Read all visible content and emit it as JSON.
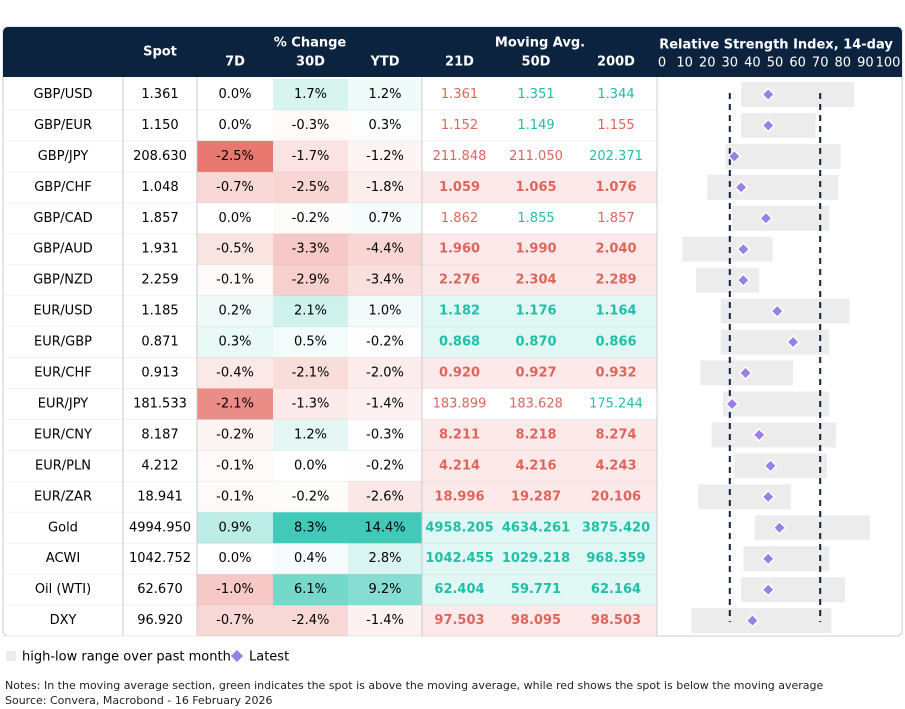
{
  "header": {
    "spot": "Spot",
    "change": "% Change",
    "change_cols": [
      "7D",
      "30D",
      "YTD"
    ],
    "ma": "Moving Avg.",
    "ma_cols": [
      "21D",
      "50D",
      "200D"
    ],
    "rsi": "Relative Strength Index, 14-day"
  },
  "table": {
    "rows": [
      {
        "name": "GBP/USD",
        "spot": "1.361",
        "change": [
          "0.0%",
          "1.7%",
          "1.2%"
        ],
        "ma": [
          "1.361",
          "1.351",
          "1.344"
        ],
        "rsi": {
          "low": 35,
          "high": 85,
          "latest": 47
        }
      },
      {
        "name": "GBP/EUR",
        "spot": "1.150",
        "change": [
          "0.0%",
          "-0.3%",
          "0.3%"
        ],
        "ma": [
          "1.152",
          "1.149",
          "1.155"
        ],
        "rsi": {
          "low": 35,
          "high": 68,
          "latest": 47
        }
      },
      {
        "name": "GBP/JPY",
        "spot": "208.630",
        "change": [
          "-2.5%",
          "-1.7%",
          "-1.2%"
        ],
        "ma": [
          "211.848",
          "211.050",
          "202.371"
        ],
        "rsi": {
          "low": 28,
          "high": 79,
          "latest": 32
        }
      },
      {
        "name": "GBP/CHF",
        "spot": "1.048",
        "change": [
          "-0.7%",
          "-2.5%",
          "-1.8%"
        ],
        "ma": [
          "1.059",
          "1.065",
          "1.076"
        ],
        "rsi": {
          "low": 20,
          "high": 78,
          "latest": 35
        }
      },
      {
        "name": "GBP/CAD",
        "spot": "1.857",
        "change": [
          "0.0%",
          "-0.2%",
          "0.7%"
        ],
        "ma": [
          "1.862",
          "1.855",
          "1.857"
        ],
        "rsi": {
          "low": 31,
          "high": 74,
          "latest": 46
        }
      },
      {
        "name": "GBP/AUD",
        "spot": "1.931",
        "change": [
          "-0.5%",
          "-3.3%",
          "-4.4%"
        ],
        "ma": [
          "1.960",
          "1.990",
          "2.040"
        ],
        "rsi": {
          "low": 9,
          "high": 49,
          "latest": 36
        }
      },
      {
        "name": "GBP/NZD",
        "spot": "2.259",
        "change": [
          "-0.1%",
          "-2.9%",
          "-3.4%"
        ],
        "ma": [
          "2.276",
          "2.304",
          "2.289"
        ],
        "rsi": {
          "low": 15,
          "high": 43,
          "latest": 36
        }
      },
      {
        "name": "EUR/USD",
        "spot": "1.185",
        "change": [
          "0.2%",
          "2.1%",
          "1.0%"
        ],
        "ma": [
          "1.182",
          "1.176",
          "1.164"
        ],
        "rsi": {
          "low": 26,
          "high": 83,
          "latest": 51
        }
      },
      {
        "name": "EUR/GBP",
        "spot": "0.871",
        "change": [
          "0.3%",
          "0.5%",
          "-0.2%"
        ],
        "ma": [
          "0.868",
          "0.870",
          "0.866"
        ],
        "rsi": {
          "low": 26,
          "high": 74,
          "latest": 58
        }
      },
      {
        "name": "EUR/CHF",
        "spot": "0.913",
        "change": [
          "-0.4%",
          "-2.1%",
          "-2.0%"
        ],
        "ma": [
          "0.920",
          "0.927",
          "0.932"
        ],
        "rsi": {
          "low": 17,
          "high": 58,
          "latest": 37
        }
      },
      {
        "name": "EUR/JPY",
        "spot": "181.533",
        "change": [
          "-2.1%",
          "-1.3%",
          "-1.4%"
        ],
        "ma": [
          "183.899",
          "183.628",
          "175.244"
        ],
        "rsi": {
          "low": 27,
          "high": 74,
          "latest": 31
        }
      },
      {
        "name": "EUR/CNY",
        "spot": "8.187",
        "change": [
          "-0.2%",
          "1.2%",
          "-0.3%"
        ],
        "ma": [
          "8.211",
          "8.218",
          "8.274"
        ],
        "rsi": {
          "low": 22,
          "high": 77,
          "latest": 43
        }
      },
      {
        "name": "EUR/PLN",
        "spot": "4.212",
        "change": [
          "-0.1%",
          "0.0%",
          "-0.2%"
        ],
        "ma": [
          "4.214",
          "4.216",
          "4.243"
        ],
        "rsi": {
          "low": 32,
          "high": 73,
          "latest": 48
        }
      },
      {
        "name": "EUR/ZAR",
        "spot": "18.941",
        "change": [
          "-0.1%",
          "-0.2%",
          "-2.6%"
        ],
        "ma": [
          "18.996",
          "19.287",
          "20.106"
        ],
        "rsi": {
          "low": 16,
          "high": 57,
          "latest": 47
        }
      },
      {
        "name": "Gold",
        "spot": "4994.950",
        "change": [
          "0.9%",
          "8.3%",
          "14.4%"
        ],
        "ma": [
          "4958.205",
          "4634.261",
          "3875.420"
        ],
        "rsi": {
          "low": 41,
          "high": 92,
          "latest": 52
        }
      },
      {
        "name": "ACWI",
        "spot": "1042.752",
        "change": [
          "0.0%",
          "0.4%",
          "2.8%"
        ],
        "ma": [
          "1042.455",
          "1029.218",
          "968.359"
        ],
        "rsi": {
          "low": 36,
          "high": 74,
          "latest": 47
        }
      },
      {
        "name": "Oil (WTI)",
        "spot": "62.670",
        "change": [
          "-1.0%",
          "6.1%",
          "9.2%"
        ],
        "ma": [
          "62.404",
          "59.771",
          "62.164"
        ],
        "rsi": {
          "low": 35,
          "high": 81,
          "latest": 47
        }
      },
      {
        "name": "DXY",
        "spot": "96.920",
        "change": [
          "-0.7%",
          "-2.4%",
          "-1.4%"
        ],
        "ma": [
          "97.503",
          "98.095",
          "98.503"
        ],
        "rsi": {
          "low": 13,
          "high": 75,
          "latest": 40
        }
      }
    ]
  },
  "rsi_axis": {
    "lim": [
      0,
      100
    ],
    "ticks": [
      0,
      10,
      20,
      30,
      40,
      50,
      60,
      70,
      80,
      90,
      100
    ],
    "bands": [
      30,
      70
    ]
  },
  "legend": {
    "range": "high-low range over past month",
    "latest": "Latest"
  },
  "notes": [
    "Notes: In the moving average section, green indicates the spot is above the moving average, while red shows the spot is below the moving average",
    "Source: Convera, Macrobond - 16 February 2026"
  ]
}
